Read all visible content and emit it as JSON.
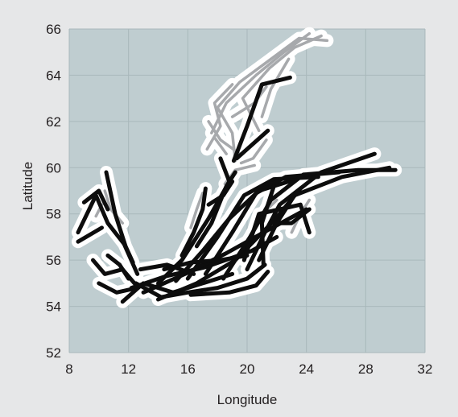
{
  "chart_data": {
    "type": "map",
    "title": "",
    "xlabel": "Longitude",
    "ylabel": "Latitude",
    "xlim": [
      8,
      32
    ],
    "ylim": [
      52,
      66
    ],
    "x_ticks": [
      "8",
      "12",
      "16",
      "20",
      "24",
      "28",
      "32"
    ],
    "y_ticks": [
      "52",
      "54",
      "56",
      "58",
      "60",
      "62",
      "64",
      "66"
    ],
    "grid": true,
    "colors": {
      "figure_background": "#e6e7e8",
      "plot_background": "#bfcdd0",
      "gridline": "#a9b8bb",
      "water_area": "#ffffff",
      "track_light": "#a7a9ac",
      "track_dark": "#0d0d0d"
    },
    "light_tracks": [
      [
        [
          19.2,
          60.3
        ],
        [
          19.0,
          61.5
        ],
        [
          18.0,
          62.6
        ],
        [
          19.5,
          63.7
        ],
        [
          21.4,
          64.6
        ],
        [
          23.5,
          65.6
        ],
        [
          25.4,
          65.5
        ]
      ],
      [
        [
          17.6,
          61.5
        ],
        [
          18.6,
          62.8
        ],
        [
          20.6,
          64.0
        ],
        [
          22.5,
          65.0
        ],
        [
          24.2,
          65.8
        ]
      ],
      [
        [
          20.8,
          61.6
        ],
        [
          19.7,
          63.0
        ],
        [
          21.5,
          64.3
        ],
        [
          23.2,
          65.2
        ],
        [
          25.0,
          65.7
        ]
      ],
      [
        [
          17.3,
          60.8
        ],
        [
          18.2,
          61.8
        ],
        [
          17.8,
          62.8
        ],
        [
          19.0,
          63.6
        ]
      ],
      [
        [
          19.5,
          60.6
        ],
        [
          18.2,
          61.2
        ],
        [
          17.4,
          62.0
        ]
      ],
      [
        [
          21.0,
          62.2
        ],
        [
          21.6,
          63.4
        ],
        [
          22.8,
          64.7
        ]
      ],
      [
        [
          19.6,
          60.2
        ],
        [
          20.4,
          60.4
        ],
        [
          21.3,
          61.2
        ]
      ],
      [
        [
          18.6,
          60.6
        ],
        [
          17.8,
          61.3
        ]
      ],
      [
        [
          19.0,
          62.2
        ],
        [
          20.5,
          62.8
        ],
        [
          21.3,
          63.5
        ]
      ],
      [
        [
          16.2,
          57.4
        ],
        [
          16.6,
          58.2
        ],
        [
          17.0,
          58.9
        ]
      ],
      [
        [
          18.5,
          59.3
        ],
        [
          19.2,
          59.9
        ],
        [
          20.5,
          60.1
        ]
      ],
      [
        [
          21.2,
          58.1
        ],
        [
          22.0,
          58.6
        ]
      ],
      [
        [
          10.4,
          59.0
        ],
        [
          10.8,
          58.2
        ],
        [
          11.6,
          57.6
        ]
      ],
      [
        [
          9.8,
          57.9
        ],
        [
          10.2,
          58.4
        ]
      ],
      [
        [
          23.0,
          57.2
        ],
        [
          23.6,
          58.0
        ],
        [
          24.2,
          58.6
        ]
      ]
    ],
    "dark_tracks": [
      [
        [
          19.1,
          60.3
        ],
        [
          20.0,
          61.8
        ],
        [
          21.0,
          63.6
        ],
        [
          22.9,
          63.9
        ]
      ],
      [
        [
          19.3,
          60.4
        ],
        [
          21.4,
          61.6
        ]
      ],
      [
        [
          10.5,
          59.8
        ],
        [
          11.1,
          58.0
        ],
        [
          11.8,
          56.6
        ],
        [
          12.3,
          55.9
        ]
      ],
      [
        [
          8.6,
          57.2
        ],
        [
          9.8,
          58.8
        ],
        [
          10.6,
          57.6
        ],
        [
          11.7,
          56.7
        ],
        [
          12.6,
          55.4
        ]
      ],
      [
        [
          8.6,
          56.8
        ],
        [
          10.2,
          57.4
        ]
      ],
      [
        [
          9.0,
          58.5
        ],
        [
          10.0,
          59.0
        ],
        [
          10.6,
          58.2
        ]
      ],
      [
        [
          10.0,
          55.0
        ],
        [
          11.2,
          54.6
        ],
        [
          12.6,
          54.8
        ]
      ],
      [
        [
          9.6,
          56.0
        ],
        [
          10.4,
          55.4
        ],
        [
          11.6,
          55.6
        ],
        [
          12.4,
          55.0
        ]
      ],
      [
        [
          10.6,
          56.2
        ],
        [
          11.4,
          55.8
        ],
        [
          12.0,
          55.2
        ]
      ],
      [
        [
          11.6,
          54.2
        ],
        [
          13.0,
          55.0
        ],
        [
          15.0,
          54.6
        ],
        [
          17.0,
          55.0
        ],
        [
          19.0,
          55.4
        ]
      ],
      [
        [
          12.5,
          55.0
        ],
        [
          14.2,
          54.4
        ],
        [
          16.0,
          54.6
        ],
        [
          18.0,
          54.8
        ],
        [
          20.0,
          55.2
        ],
        [
          21.2,
          55.8
        ]
      ],
      [
        [
          12.2,
          54.8
        ],
        [
          14.5,
          55.3
        ],
        [
          17.2,
          55.7
        ],
        [
          20.3,
          56.4
        ],
        [
          22.0,
          57.0
        ]
      ],
      [
        [
          13.0,
          54.6
        ],
        [
          15.8,
          55.4
        ],
        [
          18.6,
          56.3
        ],
        [
          21.4,
          57.3
        ],
        [
          24.0,
          58.2
        ]
      ],
      [
        [
          14.0,
          54.3
        ],
        [
          16.6,
          55.0
        ],
        [
          19.2,
          56.0
        ],
        [
          21.8,
          57.7
        ],
        [
          23.6,
          59.1
        ]
      ],
      [
        [
          15.2,
          55.1
        ],
        [
          17.0,
          56.4
        ],
        [
          18.8,
          57.8
        ],
        [
          20.8,
          59.0
        ],
        [
          23.3,
          59.5
        ]
      ],
      [
        [
          16.0,
          55.2
        ],
        [
          18.0,
          57.0
        ],
        [
          19.8,
          58.8
        ],
        [
          21.8,
          59.5
        ],
        [
          24.8,
          59.6
        ]
      ],
      [
        [
          17.2,
          55.4
        ],
        [
          19.0,
          57.2
        ],
        [
          20.6,
          58.9
        ],
        [
          22.6,
          59.6
        ],
        [
          26.2,
          59.8
        ]
      ],
      [
        [
          18.4,
          55.2
        ],
        [
          20.2,
          57.0
        ],
        [
          21.6,
          58.6
        ],
        [
          23.8,
          59.7
        ],
        [
          27.5,
          59.9
        ],
        [
          30.0,
          59.9
        ]
      ],
      [
        [
          20.0,
          55.6
        ],
        [
          21.2,
          57.2
        ],
        [
          22.2,
          58.4
        ],
        [
          25.0,
          59.8
        ],
        [
          28.6,
          60.6
        ]
      ],
      [
        [
          20.8,
          56.0
        ],
        [
          22.0,
          57.6
        ],
        [
          23.2,
          58.8
        ],
        [
          26.4,
          59.6
        ],
        [
          29.6,
          60.0
        ]
      ],
      [
        [
          21.1,
          55.8
        ],
        [
          21.0,
          57.6
        ],
        [
          21.8,
          59.2
        ]
      ],
      [
        [
          14.0,
          55.0
        ],
        [
          15.6,
          56.0
        ],
        [
          17.4,
          57.8
        ],
        [
          18.8,
          59.4
        ],
        [
          18.2,
          60.4
        ]
      ],
      [
        [
          16.6,
          56.6
        ],
        [
          17.6,
          57.6
        ],
        [
          18.6,
          59.2
        ],
        [
          19.2,
          59.8
        ]
      ],
      [
        [
          17.4,
          58.4
        ],
        [
          18.4,
          58.8
        ],
        [
          19.0,
          59.4
        ]
      ],
      [
        [
          19.8,
          56.0
        ],
        [
          20.8,
          58.0
        ],
        [
          22.2,
          58.2
        ],
        [
          23.6,
          58.4
        ],
        [
          24.2,
          57.2
        ]
      ],
      [
        [
          21.6,
          57.6
        ],
        [
          23.0,
          57.6
        ],
        [
          24.2,
          58.2
        ]
      ],
      [
        [
          15.6,
          56.2
        ],
        [
          16.4,
          57.2
        ],
        [
          17.0,
          58.2
        ],
        [
          17.2,
          59.1
        ]
      ],
      [
        [
          14.4,
          55.6
        ],
        [
          16.2,
          55.9
        ],
        [
          18.2,
          56.0
        ],
        [
          20.0,
          56.2
        ]
      ],
      [
        [
          16.2,
          54.5
        ],
        [
          18.8,
          54.6
        ],
        [
          20.6,
          54.9
        ],
        [
          21.4,
          55.5
        ]
      ],
      [
        [
          12.8,
          55.6
        ],
        [
          14.6,
          55.8
        ],
        [
          16.4,
          55.4
        ]
      ]
    ]
  }
}
